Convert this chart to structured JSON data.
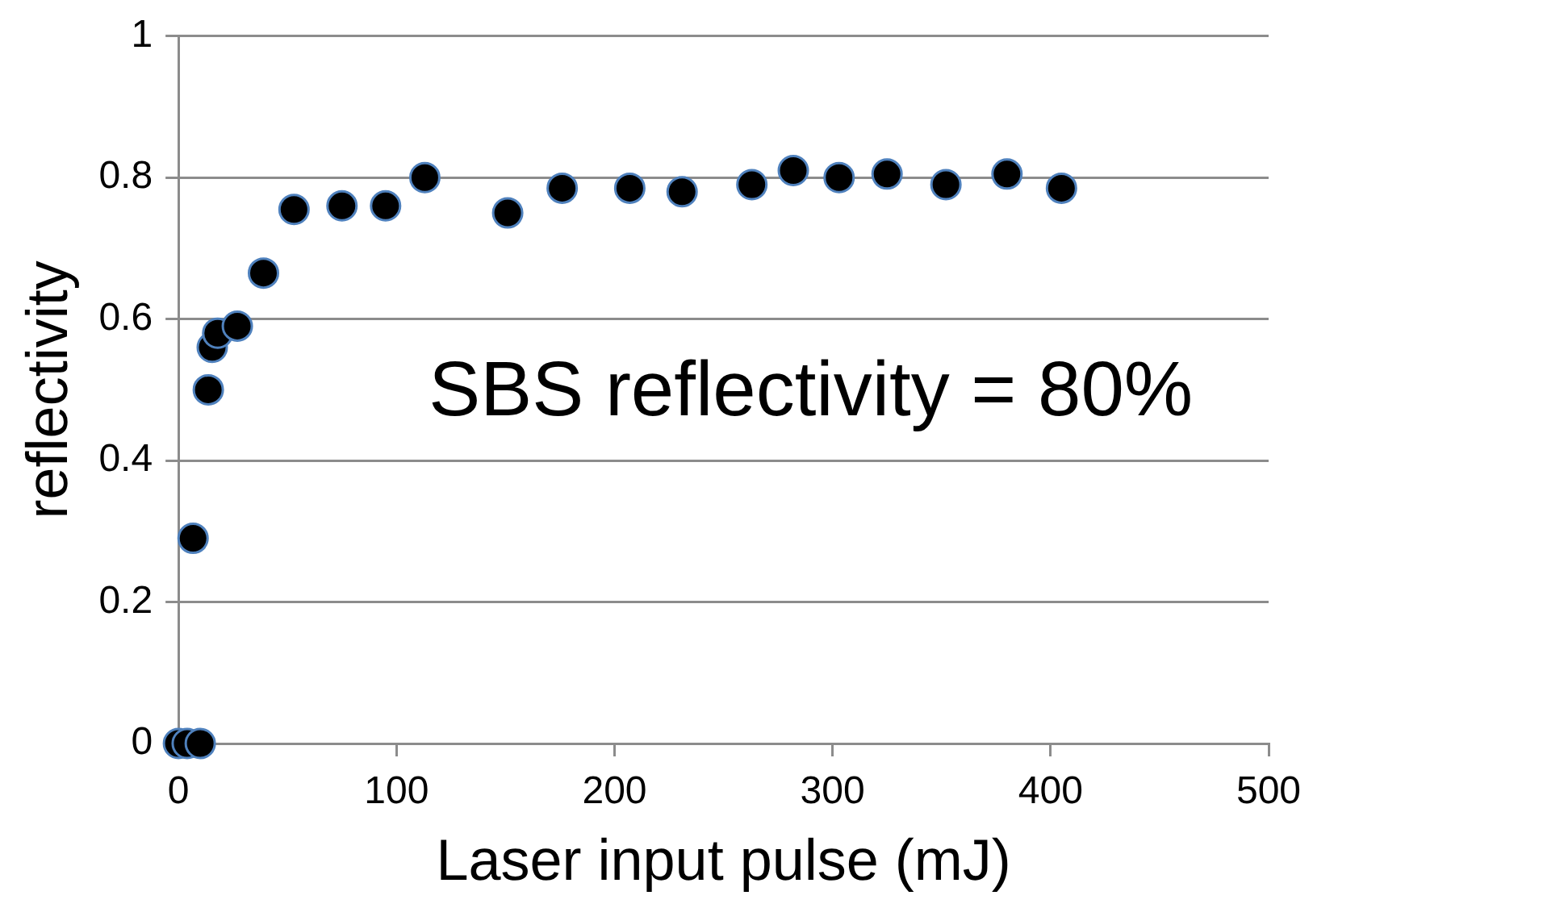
{
  "chart_data": {
    "type": "scatter",
    "xlabel": "Laser input pulse (mJ)",
    "ylabel": "reflectivity",
    "annotations": [
      "SBS reflectivity = 80%"
    ],
    "series": [
      {
        "color": "#000000",
        "x": [
          0,
          4,
          10,
          6.7,
          13.7,
          15.5,
          18,
          27,
          39,
          53,
          75,
          95,
          113,
          151,
          176,
          207,
          231,
          263,
          282,
          303,
          325,
          352,
          380,
          405
        ],
        "values": [
          0,
          0,
          0,
          0.29,
          0.5,
          0.56,
          0.58,
          0.59,
          0.665,
          0.755,
          0.76,
          0.76,
          0.8,
          0.75,
          0.785,
          0.785,
          0.78,
          0.79,
          0.81,
          0.8,
          0.805,
          0.79,
          0.805,
          0.785
        ]
      }
    ],
    "xlim": [
      0,
      500
    ],
    "xticks": [
      0,
      100,
      200,
      300,
      400,
      500
    ],
    "ylim": [
      0,
      1
    ],
    "yticks": [
      0,
      0.2,
      0.4,
      0.6,
      0.8,
      1
    ],
    "grid": "y",
    "legend": false,
    "marker": "circle"
  }
}
